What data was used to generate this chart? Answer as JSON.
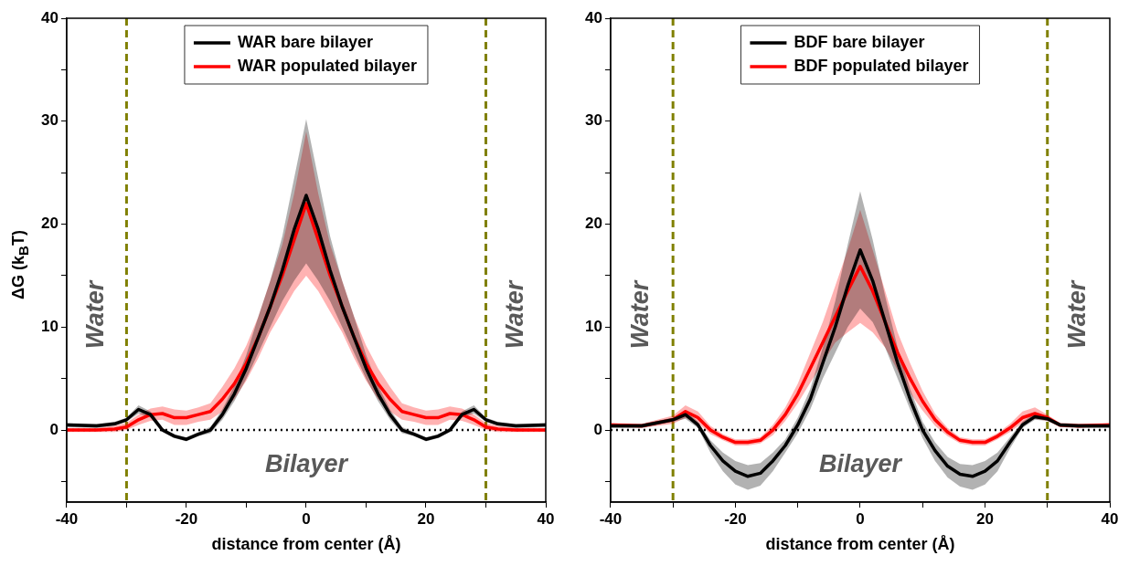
{
  "chart_data": [
    {
      "type": "line",
      "xlabel": "distance from center (Å)",
      "ylabel": "ΔG (k$_{B}$T)",
      "xlim": [
        -40,
        40
      ],
      "ylim": [
        -7,
        40
      ],
      "xticks": [
        -40,
        {
          "value": -30,
          "label": null
        },
        -20,
        {
          "value": -10,
          "label": null
        },
        0,
        {
          "value": 10,
          "label": null
        },
        20,
        {
          "value": 30,
          "label": null
        },
        40
      ],
      "yticks": [
        {
          "value": -5,
          "label": null
        },
        0,
        {
          "value": 5,
          "label": null
        },
        10,
        {
          "value": 15,
          "label": null
        },
        20,
        {
          "value": 25,
          "label": null
        },
        30,
        {
          "value": 35,
          "label": null
        },
        40
      ],
      "grid": false,
      "legend": "top",
      "marker": "none",
      "line_style": "solid",
      "ref_lines": [
        {
          "axis": "x",
          "value": -30,
          "color": "#808000",
          "line_style": "dashed"
        },
        {
          "axis": "x",
          "value": 30,
          "color": "#808000",
          "line_style": "dashed"
        },
        {
          "axis": "y",
          "value": 0,
          "color": "#000000",
          "line_style": "dotted"
        }
      ],
      "annotations": [
        "Water",
        "Water",
        "Bilayer"
      ],
      "series": [
        {
          "name": "WAR bare bilayer",
          "color": "#000000",
          "x": [
            -40,
            -35,
            -32,
            -30,
            -28,
            -26,
            -24,
            -22,
            -20,
            -18,
            -16,
            -14,
            -12,
            -10,
            -8,
            -6,
            -4,
            -2,
            0,
            2,
            4,
            6,
            8,
            10,
            12,
            14,
            16,
            18,
            20,
            22,
            24,
            26,
            28,
            30,
            32,
            35,
            40
          ],
          "values": [
            0.5,
            0.4,
            0.6,
            1.0,
            2.0,
            1.5,
            0,
            -0.6,
            -0.9,
            -0.4,
            0,
            1.5,
            3.5,
            6,
            9,
            12,
            15.5,
            19.5,
            22.8,
            19.5,
            15.5,
            12,
            9,
            6,
            3.5,
            1.5,
            0,
            -0.4,
            -0.9,
            -0.6,
            0,
            1.5,
            2.0,
            1.0,
            0.6,
            0.4,
            0.5
          ],
          "upper": [
            0.7,
            0.6,
            0.8,
            1.2,
            2.4,
            1.8,
            0.2,
            -0.4,
            -0.7,
            -0.2,
            0.3,
            2,
            4.3,
            7.3,
            11,
            14.5,
            18.8,
            24.5,
            30.2,
            24.5,
            18.8,
            14.5,
            11,
            7.3,
            4.3,
            2,
            0.3,
            -0.2,
            -0.7,
            -0.4,
            0.2,
            1.8,
            2.4,
            1.2,
            0.8,
            0.6,
            0.7
          ],
          "lower": [
            0.3,
            0.2,
            0.4,
            0.8,
            1.6,
            1.2,
            -0.2,
            -0.8,
            -1.1,
            -0.6,
            -0.3,
            1,
            2.8,
            5,
            7.5,
            10,
            12.5,
            14.5,
            16.2,
            14.5,
            12.5,
            10,
            7.5,
            5,
            2.8,
            1,
            -0.3,
            -0.6,
            -1.1,
            -0.8,
            -0.2,
            1.2,
            1.6,
            0.8,
            0.4,
            0.2,
            0.3
          ]
        },
        {
          "name": "WAR populated bilayer",
          "color": "#ff0000",
          "x": [
            -40,
            -35,
            -32,
            -30,
            -28,
            -26,
            -24,
            -22,
            -20,
            -18,
            -16,
            -14,
            -12,
            -10,
            -8,
            -6,
            -4,
            -2,
            0,
            2,
            4,
            6,
            8,
            10,
            12,
            14,
            16,
            18,
            20,
            22,
            24,
            26,
            28,
            30,
            32,
            35,
            40
          ],
          "values": [
            0,
            0,
            0.1,
            0.3,
            1.0,
            1.5,
            1.6,
            1.2,
            1.2,
            1.5,
            1.8,
            3,
            4.5,
            6.5,
            9,
            12,
            15,
            18.5,
            22,
            18.5,
            15,
            12,
            9,
            6.5,
            4.5,
            3,
            1.8,
            1.5,
            1.2,
            1.2,
            1.6,
            1.5,
            1.0,
            0.3,
            0.1,
            0,
            0
          ],
          "upper": [
            0.2,
            0.2,
            0.4,
            0.7,
            1.5,
            2.1,
            2.3,
            2.0,
            1.9,
            2.2,
            2.6,
            4.2,
            6,
            8.2,
            11,
            14.5,
            18,
            23,
            29,
            23,
            18,
            14.5,
            11,
            8.2,
            6,
            4.2,
            2.6,
            2.2,
            1.9,
            2.0,
            2.3,
            2.1,
            1.5,
            0.7,
            0.4,
            0.2,
            0.2
          ],
          "lower": [
            -0.2,
            -0.2,
            -0.2,
            0,
            0.5,
            0.9,
            1.0,
            0.5,
            0.5,
            0.8,
            1.0,
            1.8,
            3,
            4.8,
            7,
            9.5,
            11.5,
            13.5,
            15,
            13.5,
            11.5,
            9.5,
            7,
            4.8,
            3,
            1.8,
            1.0,
            0.8,
            0.5,
            0.5,
            1.0,
            0.9,
            0.5,
            0,
            -0.2,
            -0.2,
            -0.2
          ]
        }
      ]
    },
    {
      "type": "line",
      "xlabel": "distance from center (Å)",
      "xlim": [
        -40,
        40
      ],
      "ylim": [
        -7,
        40
      ],
      "xticks": [
        -40,
        {
          "value": -30,
          "label": null
        },
        -20,
        {
          "value": -10,
          "label": null
        },
        0,
        {
          "value": 10,
          "label": null
        },
        20,
        {
          "value": 30,
          "label": null
        },
        40
      ],
      "yticks": [
        {
          "value": -5,
          "label": null
        },
        0,
        {
          "value": 5,
          "label": null
        },
        10,
        {
          "value": 15,
          "label": null
        },
        20,
        {
          "value": 25,
          "label": null
        },
        30,
        {
          "value": 35,
          "label": null
        },
        40
      ],
      "grid": false,
      "legend": "top",
      "marker": "none",
      "line_style": "solid",
      "ref_lines": [
        {
          "axis": "x",
          "value": -30,
          "color": "#808000",
          "line_style": "dashed"
        },
        {
          "axis": "x",
          "value": 30,
          "color": "#808000",
          "line_style": "dashed"
        },
        {
          "axis": "y",
          "value": 0,
          "color": "#000000",
          "line_style": "dotted"
        }
      ],
      "annotations": [
        "Water",
        "Water",
        "Bilayer"
      ],
      "series": [
        {
          "name": "BDF bare bilayer",
          "color": "#000000",
          "x": [
            -40,
            -35,
            -30,
            -28,
            -26,
            -24,
            -22,
            -20,
            -18,
            -16,
            -14,
            -12,
            -10,
            -8,
            -6,
            -4,
            -2,
            0,
            2,
            4,
            6,
            8,
            10,
            12,
            14,
            16,
            18,
            20,
            22,
            24,
            26,
            28,
            30,
            32,
            35,
            40
          ],
          "values": [
            0.4,
            0.4,
            1.0,
            1.5,
            0.5,
            -1.5,
            -3,
            -4,
            -4.5,
            -4.2,
            -3,
            -1.5,
            0.5,
            3,
            6.5,
            10,
            14,
            17.5,
            14.5,
            10.5,
            6.5,
            3,
            0,
            -2,
            -3.5,
            -4.3,
            -4.5,
            -4,
            -3,
            -1.2,
            0.5,
            1.3,
            1.1,
            0.5,
            0.4,
            0.4
          ],
          "upper": [
            0.6,
            0.6,
            1.2,
            1.9,
            0.8,
            -1.0,
            -2.2,
            -3,
            -3.4,
            -3.2,
            -2.2,
            -0.9,
            1.2,
            4,
            8,
            12.5,
            18,
            23.2,
            18.5,
            13,
            8,
            4,
            0.8,
            -1.2,
            -2.6,
            -3.3,
            -3.4,
            -3,
            -2.2,
            -0.7,
            0.8,
            1.6,
            1.3,
            0.7,
            0.6,
            0.6
          ],
          "lower": [
            0.2,
            0.2,
            0.8,
            1.1,
            0.2,
            -2.2,
            -4,
            -5.3,
            -5.8,
            -5.4,
            -4,
            -2.2,
            -0.3,
            2,
            5,
            7.5,
            10,
            11.8,
            10.5,
            8,
            5,
            2,
            -0.8,
            -3,
            -4.6,
            -5.5,
            -5.8,
            -5.3,
            -4,
            -1.8,
            0.2,
            1.0,
            0.9,
            0.3,
            0.2,
            0.2
          ]
        },
        {
          "name": "BDF populated bilayer",
          "color": "#ff0000",
          "x": [
            -40,
            -35,
            -30,
            -28,
            -26,
            -24,
            -22,
            -20,
            -18,
            -16,
            -14,
            -12,
            -10,
            -8,
            -6,
            -4,
            -2,
            0,
            2,
            4,
            6,
            8,
            10,
            12,
            14,
            16,
            18,
            20,
            22,
            24,
            26,
            28,
            30,
            32,
            35,
            40
          ],
          "values": [
            0.5,
            0.4,
            1.0,
            1.8,
            1.2,
            0,
            -0.7,
            -1.2,
            -1.2,
            -1.0,
            0,
            1.5,
            3.5,
            6,
            8.5,
            11,
            13.5,
            15.9,
            13.5,
            10.5,
            7.5,
            5,
            2.8,
            1,
            -0.2,
            -1,
            -1.2,
            -1.2,
            -0.6,
            0.2,
            1.2,
            1.6,
            1.2,
            0.5,
            0.4,
            0.5
          ],
          "upper": [
            0.7,
            0.6,
            1.4,
            2.4,
            1.8,
            0.4,
            -0.4,
            -0.9,
            -0.9,
            -0.7,
            0.5,
            2.2,
            4.5,
            7.5,
            10.5,
            14,
            17.5,
            21.4,
            17.5,
            13.5,
            9.5,
            6.5,
            3.8,
            1.6,
            0.2,
            -0.7,
            -0.9,
            -0.9,
            -0.3,
            0.6,
            1.8,
            2.2,
            1.5,
            0.7,
            0.6,
            0.7
          ],
          "lower": [
            0.3,
            0.2,
            0.6,
            1.2,
            0.7,
            -0.4,
            -1.0,
            -1.5,
            -1.5,
            -1.3,
            -0.5,
            0.9,
            2.6,
            4.6,
            6.5,
            8.5,
            9.5,
            10.4,
            9.5,
            8,
            5.8,
            3.6,
            1.9,
            0.4,
            -0.6,
            -1.3,
            -1.5,
            -1.5,
            -0.9,
            -0.2,
            0.7,
            1.1,
            0.9,
            0.3,
            0.2,
            0.3
          ]
        }
      ]
    }
  ]
}
